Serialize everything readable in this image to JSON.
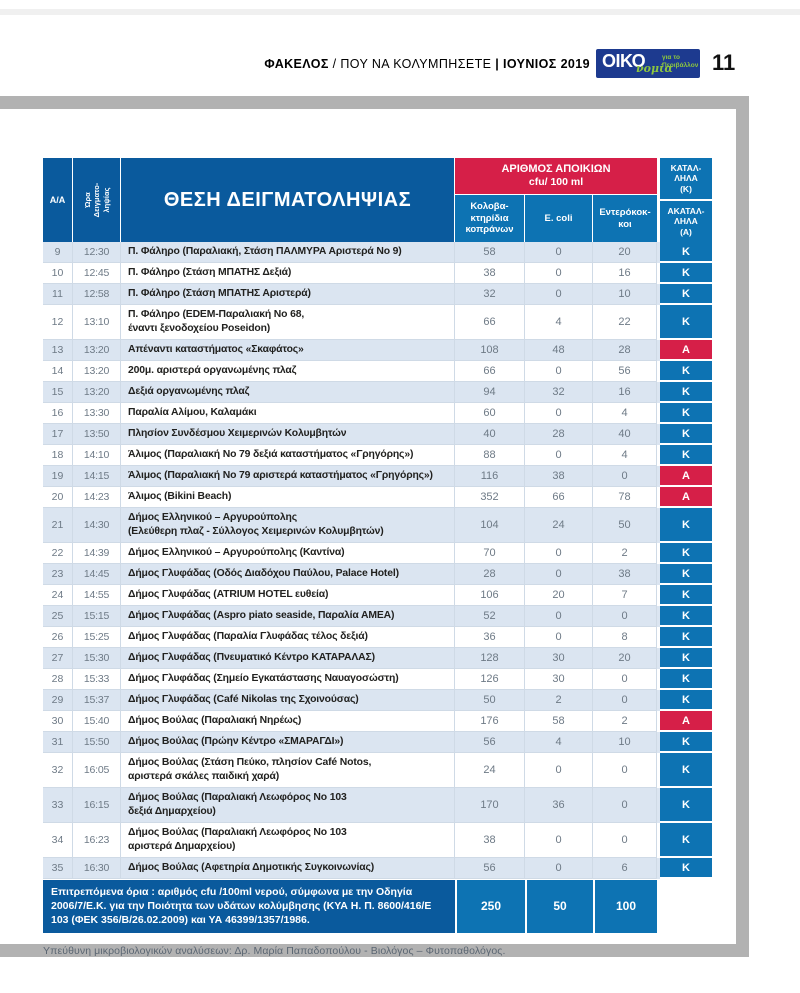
{
  "page": {
    "header": {
      "section": "ΦΑΚΕΛΟΣ",
      "sep1": "/",
      "topic": "ΠΟΥ ΝΑ ΚΟΛΥΜΠΗΣΕΤΕ",
      "sep2": "|",
      "issue": "ΙΟΥΝΙΟΣ 2019",
      "page_number": "11",
      "logo": {
        "main": "ΟΙΚΟ",
        "script": "νομία",
        "tagline": "για το\nΠεριβάλλον",
        "brand_blue": "#1d3a8f",
        "brand_green": "#8dc63f"
      }
    },
    "footnote": "Υπεύθυνη μικροβιολογικών αναλύσεων: Δρ. Μαρία Παπαδοπούλου - Βιολόγος – Φυτοπαθολόγος."
  },
  "table": {
    "headers": {
      "col_id": "Α/Α",
      "col_time": "Ώρα\nΔειγματο-\nληψίας",
      "col_location": "ΘΕΣΗ ΔΕΙΓΜΑΤΟΛΗΨΙΑΣ",
      "colony_group_line1": "ΑΡΙΘΜΟΣ ΑΠΟΙΚΙΩΝ",
      "colony_group_line2": "cfu/ 100 ml",
      "col_coliform": "Κολοβα-\nκτηρίδια\nκοπράνων",
      "col_ecoli": "E. coli",
      "col_enterococci": "Εντερόκοκ-\nκοι",
      "col_suitable": "ΚΑΤΑΛ-\nΛΗΛΑ\n(Κ)",
      "col_unsuitable": "ΑΚΑΤΑΛ-\nΛΗΛΑ\n(Α)"
    },
    "status_colors": {
      "suitable": "#0d73b3",
      "unsuitable": "#d61f48"
    },
    "rows": [
      {
        "id": "9",
        "time": "12:30",
        "location": "Π. Φάληρο (Παραλιακή, Στάση ΠΑΛΜΥΡΑ Αριστερά Νο 9)",
        "coliform": "58",
        "ecoli": "0",
        "enterococci": "20",
        "status": "Κ"
      },
      {
        "id": "10",
        "time": "12:45",
        "location": "Π. Φάληρο (Στάση ΜΠΑΤΗΣ Δεξιά)",
        "coliform": "38",
        "ecoli": "0",
        "enterococci": "16",
        "status": "Κ"
      },
      {
        "id": "11",
        "time": "12:58",
        "location": "Π. Φάληρο (Στάση ΜΠΑΤΗΣ Αριστερά)",
        "coliform": "32",
        "ecoli": "0",
        "enterococci": "10",
        "status": "Κ"
      },
      {
        "id": "12",
        "time": "13:10",
        "location": "Π. Φάληρο (EDEM-Παραλιακή Νο 68,\nέναντι ξενοδοχείου Poseidon)",
        "coliform": "66",
        "ecoli": "4",
        "enterococci": "22",
        "status": "Κ"
      },
      {
        "id": "13",
        "time": "13:20",
        "location": "Απέναντι καταστήματος «Σκαφάτος»",
        "coliform": "108",
        "ecoli": "48",
        "enterococci": "28",
        "status": "Α"
      },
      {
        "id": "14",
        "time": "13:20",
        "location": "200μ. αριστερά οργανωμένης πλαζ",
        "coliform": "66",
        "ecoli": "0",
        "enterococci": "56",
        "status": "Κ"
      },
      {
        "id": "15",
        "time": "13:20",
        "location": "Δεξιά οργανωμένης πλαζ",
        "coliform": "94",
        "ecoli": "32",
        "enterococci": "16",
        "status": "Κ"
      },
      {
        "id": "16",
        "time": "13:30",
        "location": "Παραλία Αλίμου, Καλαμάκι",
        "coliform": "60",
        "ecoli": "0",
        "enterococci": "4",
        "status": "Κ"
      },
      {
        "id": "17",
        "time": "13:50",
        "location": "Πλησίον Συνδέσμου Χειμερινών Κολυμβητών",
        "coliform": "40",
        "ecoli": "28",
        "enterococci": "40",
        "status": "Κ"
      },
      {
        "id": "18",
        "time": "14:10",
        "location": "Άλιμος (Παραλιακή Νο 79 δεξιά καταστήματος «Γρηγόρης»)",
        "coliform": "88",
        "ecoli": "0",
        "enterococci": "4",
        "status": "Κ"
      },
      {
        "id": "19",
        "time": "14:15",
        "location": "Άλιμος (Παραλιακή Νο 79 αριστερά καταστήματος «Γρηγόρης»)",
        "coliform": "116",
        "ecoli": "38",
        "enterococci": "0",
        "status": "Α"
      },
      {
        "id": "20",
        "time": "14:23",
        "location": "Άλιμος (Bikini Beach)",
        "coliform": "352",
        "ecoli": "66",
        "enterococci": "78",
        "status": "Α"
      },
      {
        "id": "21",
        "time": "14:30",
        "location": "Δήμος Ελληνικού – Αργυρούπολης\n(Ελεύθερη πλαζ - Σύλλογος Χειμερινών Κολυμβητών)",
        "coliform": "104",
        "ecoli": "24",
        "enterococci": "50",
        "status": "Κ"
      },
      {
        "id": "22",
        "time": "14:39",
        "location": "Δήμος Ελληνικού – Αργυρούπολης (Καντίνα)",
        "coliform": "70",
        "ecoli": "0",
        "enterococci": "2",
        "status": "Κ"
      },
      {
        "id": "23",
        "time": "14:45",
        "location": "Δήμος Γλυφάδας (Οδός Διαδόχου Παύλου, Palace Hotel)",
        "coliform": "28",
        "ecoli": "0",
        "enterococci": "38",
        "status": "Κ"
      },
      {
        "id": "24",
        "time": "14:55",
        "location": "Δήμος Γλυφάδας (ATRIUM HOTEL ευθεία)",
        "coliform": "106",
        "ecoli": "20",
        "enterococci": "7",
        "status": "Κ"
      },
      {
        "id": "25",
        "time": "15:15",
        "location": "Δήμος Γλυφάδας (Aspro piato seaside, Παραλία ΑΜΕΑ)",
        "coliform": "52",
        "ecoli": "0",
        "enterococci": "0",
        "status": "Κ"
      },
      {
        "id": "26",
        "time": "15:25",
        "location": "Δήμος Γλυφάδας (Παραλία Γλυφάδας τέλος δεξιά)",
        "coliform": "36",
        "ecoli": "0",
        "enterococci": "8",
        "status": "Κ"
      },
      {
        "id": "27",
        "time": "15:30",
        "location": "Δήμος Γλυφάδας (Πνευματικό Κέντρο ΚΑΤΑΡΑΛΑΣ)",
        "coliform": "128",
        "ecoli": "30",
        "enterococci": "20",
        "status": "Κ"
      },
      {
        "id": "28",
        "time": "15:33",
        "location": "Δήμος Γλυφάδας (Σημείο Εγκατάστασης Ναυαγοσώστη)",
        "coliform": "126",
        "ecoli": "30",
        "enterococci": "0",
        "status": "Κ"
      },
      {
        "id": "29",
        "time": "15:37",
        "location": "Δήμος Γλυφάδας (Café Nikolas της Σχοινούσας)",
        "coliform": "50",
        "ecoli": "2",
        "enterococci": "0",
        "status": "Κ"
      },
      {
        "id": "30",
        "time": "15:40",
        "location": "Δήμος Βούλας (Παραλιακή Νηρέως)",
        "coliform": "176",
        "ecoli": "58",
        "enterococci": "2",
        "status": "Α"
      },
      {
        "id": "31",
        "time": "15:50",
        "location": "Δήμος Βούλας (Πρώην Κέντρο «ΣΜΑΡΑΓΔΙ»)",
        "coliform": "56",
        "ecoli": "4",
        "enterococci": "10",
        "status": "Κ"
      },
      {
        "id": "32",
        "time": "16:05",
        "location": "Δήμος Βούλας (Στάση Πεύκο, πλησίον Café Notos,\nαριστερά σκάλες παιδική χαρά)",
        "coliform": "24",
        "ecoli": "0",
        "enterococci": "0",
        "status": "Κ"
      },
      {
        "id": "33",
        "time": "16:15",
        "location": "Δήμος Βούλας (Παραλιακή Λεωφόρος Νο 103\nδεξιά Δημαρχείου)",
        "coliform": "170",
        "ecoli": "36",
        "enterococci": "0",
        "status": "Κ"
      },
      {
        "id": "34",
        "time": "16:23",
        "location": "Δήμος Βούλας (Παραλιακή Λεωφόρος Νο 103\nαριστερά Δημαρχείου)",
        "coliform": "38",
        "ecoli": "0",
        "enterococci": "0",
        "status": "Κ"
      },
      {
        "id": "35",
        "time": "16:30",
        "location": "Δήμος Βούλας (Αφετηρία Δημοτικής Συγκοινωνίας)",
        "coliform": "56",
        "ecoli": "0",
        "enterococci": "6",
        "status": "Κ"
      }
    ],
    "limits": {
      "label": "Επιτρεπόμενα όρια : αριθμός cfu /100ml νερού, σύμφωνα με την Οδηγία 2006/7/Ε.Κ. για την Ποιότητα των υδάτων κολύμβησης (ΚΥΑ Η. Π. 8600/416/Ε 103 (ΦΕΚ 356/Β/26.02.2009) και ΥΑ 46399/1357/1986.",
      "coliform": "250",
      "ecoli": "50",
      "enterococci": "100"
    }
  }
}
